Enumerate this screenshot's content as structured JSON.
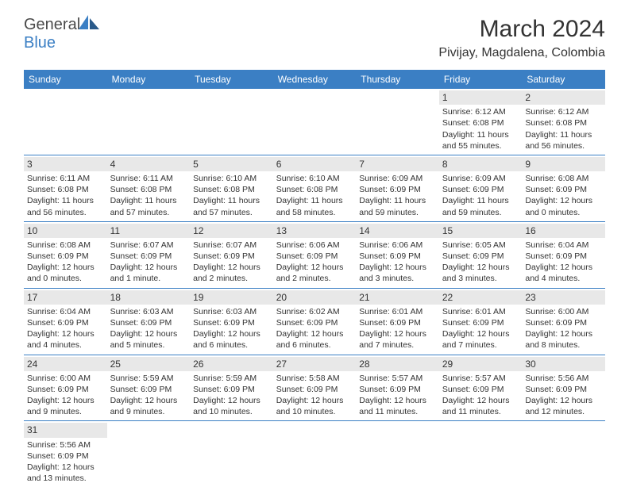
{
  "logo": {
    "text1": "General",
    "text2": "Blue"
  },
  "title": "March 2024",
  "location": "Pivijay, Magdalena, Colombia",
  "colors": {
    "header_bg": "#3b7fc4",
    "header_text": "#ffffff",
    "day_bg": "#e8e8e8",
    "border": "#3b7fc4",
    "text": "#333333",
    "page_bg": "#ffffff"
  },
  "fonts": {
    "title_size": 30,
    "location_size": 16,
    "th_size": 12,
    "cell_size": 10.5
  },
  "weekdays": [
    "Sunday",
    "Monday",
    "Tuesday",
    "Wednesday",
    "Thursday",
    "Friday",
    "Saturday"
  ],
  "weeks": [
    [
      null,
      null,
      null,
      null,
      null,
      {
        "n": "1",
        "sr": "Sunrise: 6:12 AM",
        "ss": "Sunset: 6:08 PM",
        "dl": "Daylight: 11 hours and 55 minutes."
      },
      {
        "n": "2",
        "sr": "Sunrise: 6:12 AM",
        "ss": "Sunset: 6:08 PM",
        "dl": "Daylight: 11 hours and 56 minutes."
      }
    ],
    [
      {
        "n": "3",
        "sr": "Sunrise: 6:11 AM",
        "ss": "Sunset: 6:08 PM",
        "dl": "Daylight: 11 hours and 56 minutes."
      },
      {
        "n": "4",
        "sr": "Sunrise: 6:11 AM",
        "ss": "Sunset: 6:08 PM",
        "dl": "Daylight: 11 hours and 57 minutes."
      },
      {
        "n": "5",
        "sr": "Sunrise: 6:10 AM",
        "ss": "Sunset: 6:08 PM",
        "dl": "Daylight: 11 hours and 57 minutes."
      },
      {
        "n": "6",
        "sr": "Sunrise: 6:10 AM",
        "ss": "Sunset: 6:08 PM",
        "dl": "Daylight: 11 hours and 58 minutes."
      },
      {
        "n": "7",
        "sr": "Sunrise: 6:09 AM",
        "ss": "Sunset: 6:09 PM",
        "dl": "Daylight: 11 hours and 59 minutes."
      },
      {
        "n": "8",
        "sr": "Sunrise: 6:09 AM",
        "ss": "Sunset: 6:09 PM",
        "dl": "Daylight: 11 hours and 59 minutes."
      },
      {
        "n": "9",
        "sr": "Sunrise: 6:08 AM",
        "ss": "Sunset: 6:09 PM",
        "dl": "Daylight: 12 hours and 0 minutes."
      }
    ],
    [
      {
        "n": "10",
        "sr": "Sunrise: 6:08 AM",
        "ss": "Sunset: 6:09 PM",
        "dl": "Daylight: 12 hours and 0 minutes."
      },
      {
        "n": "11",
        "sr": "Sunrise: 6:07 AM",
        "ss": "Sunset: 6:09 PM",
        "dl": "Daylight: 12 hours and 1 minute."
      },
      {
        "n": "12",
        "sr": "Sunrise: 6:07 AM",
        "ss": "Sunset: 6:09 PM",
        "dl": "Daylight: 12 hours and 2 minutes."
      },
      {
        "n": "13",
        "sr": "Sunrise: 6:06 AM",
        "ss": "Sunset: 6:09 PM",
        "dl": "Daylight: 12 hours and 2 minutes."
      },
      {
        "n": "14",
        "sr": "Sunrise: 6:06 AM",
        "ss": "Sunset: 6:09 PM",
        "dl": "Daylight: 12 hours and 3 minutes."
      },
      {
        "n": "15",
        "sr": "Sunrise: 6:05 AM",
        "ss": "Sunset: 6:09 PM",
        "dl": "Daylight: 12 hours and 3 minutes."
      },
      {
        "n": "16",
        "sr": "Sunrise: 6:04 AM",
        "ss": "Sunset: 6:09 PM",
        "dl": "Daylight: 12 hours and 4 minutes."
      }
    ],
    [
      {
        "n": "17",
        "sr": "Sunrise: 6:04 AM",
        "ss": "Sunset: 6:09 PM",
        "dl": "Daylight: 12 hours and 4 minutes."
      },
      {
        "n": "18",
        "sr": "Sunrise: 6:03 AM",
        "ss": "Sunset: 6:09 PM",
        "dl": "Daylight: 12 hours and 5 minutes."
      },
      {
        "n": "19",
        "sr": "Sunrise: 6:03 AM",
        "ss": "Sunset: 6:09 PM",
        "dl": "Daylight: 12 hours and 6 minutes."
      },
      {
        "n": "20",
        "sr": "Sunrise: 6:02 AM",
        "ss": "Sunset: 6:09 PM",
        "dl": "Daylight: 12 hours and 6 minutes."
      },
      {
        "n": "21",
        "sr": "Sunrise: 6:01 AM",
        "ss": "Sunset: 6:09 PM",
        "dl": "Daylight: 12 hours and 7 minutes."
      },
      {
        "n": "22",
        "sr": "Sunrise: 6:01 AM",
        "ss": "Sunset: 6:09 PM",
        "dl": "Daylight: 12 hours and 7 minutes."
      },
      {
        "n": "23",
        "sr": "Sunrise: 6:00 AM",
        "ss": "Sunset: 6:09 PM",
        "dl": "Daylight: 12 hours and 8 minutes."
      }
    ],
    [
      {
        "n": "24",
        "sr": "Sunrise: 6:00 AM",
        "ss": "Sunset: 6:09 PM",
        "dl": "Daylight: 12 hours and 9 minutes."
      },
      {
        "n": "25",
        "sr": "Sunrise: 5:59 AM",
        "ss": "Sunset: 6:09 PM",
        "dl": "Daylight: 12 hours and 9 minutes."
      },
      {
        "n": "26",
        "sr": "Sunrise: 5:59 AM",
        "ss": "Sunset: 6:09 PM",
        "dl": "Daylight: 12 hours and 10 minutes."
      },
      {
        "n": "27",
        "sr": "Sunrise: 5:58 AM",
        "ss": "Sunset: 6:09 PM",
        "dl": "Daylight: 12 hours and 10 minutes."
      },
      {
        "n": "28",
        "sr": "Sunrise: 5:57 AM",
        "ss": "Sunset: 6:09 PM",
        "dl": "Daylight: 12 hours and 11 minutes."
      },
      {
        "n": "29",
        "sr": "Sunrise: 5:57 AM",
        "ss": "Sunset: 6:09 PM",
        "dl": "Daylight: 12 hours and 11 minutes."
      },
      {
        "n": "30",
        "sr": "Sunrise: 5:56 AM",
        "ss": "Sunset: 6:09 PM",
        "dl": "Daylight: 12 hours and 12 minutes."
      }
    ],
    [
      {
        "n": "31",
        "sr": "Sunrise: 5:56 AM",
        "ss": "Sunset: 6:09 PM",
        "dl": "Daylight: 12 hours and 13 minutes."
      },
      null,
      null,
      null,
      null,
      null,
      null
    ]
  ]
}
